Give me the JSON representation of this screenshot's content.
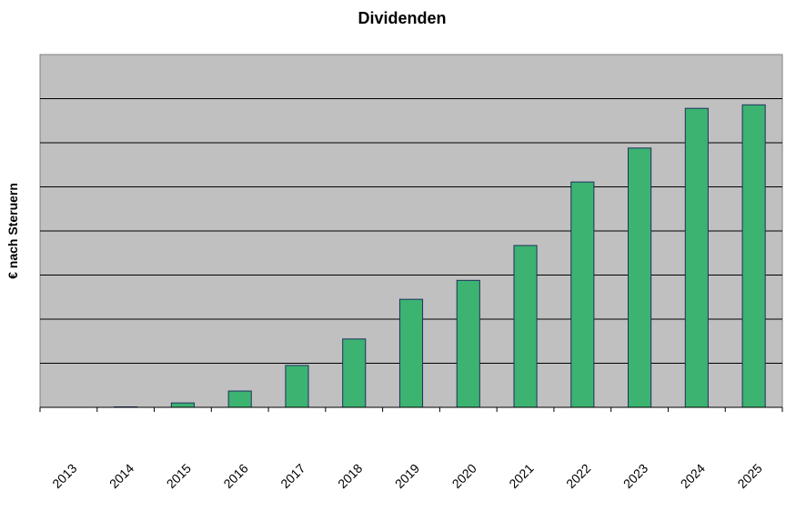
{
  "chart_data": {
    "type": "bar",
    "title": "Dividenden",
    "ylabel": "€ nach Steruern",
    "xlabel": "",
    "categories": [
      "2013",
      "2014",
      "2015",
      "2016",
      "2017",
      "2018",
      "2019",
      "2020",
      "2021",
      "2022",
      "2023",
      "2024",
      "2025"
    ],
    "values": [
      0,
      0.01,
      0.1,
      0.37,
      0.95,
      1.55,
      2.45,
      2.88,
      3.67,
      5.11,
      5.88,
      6.78,
      6.86
    ],
    "ylim": [
      0,
      8
    ],
    "grid": true,
    "y_tick_labels_shown": false,
    "legend": "none",
    "colors": {
      "plot_background": "#c0c0c0",
      "bar_fill": "#3cb371",
      "bar_stroke": "#1f2f5f",
      "gridline": "#000000"
    }
  }
}
